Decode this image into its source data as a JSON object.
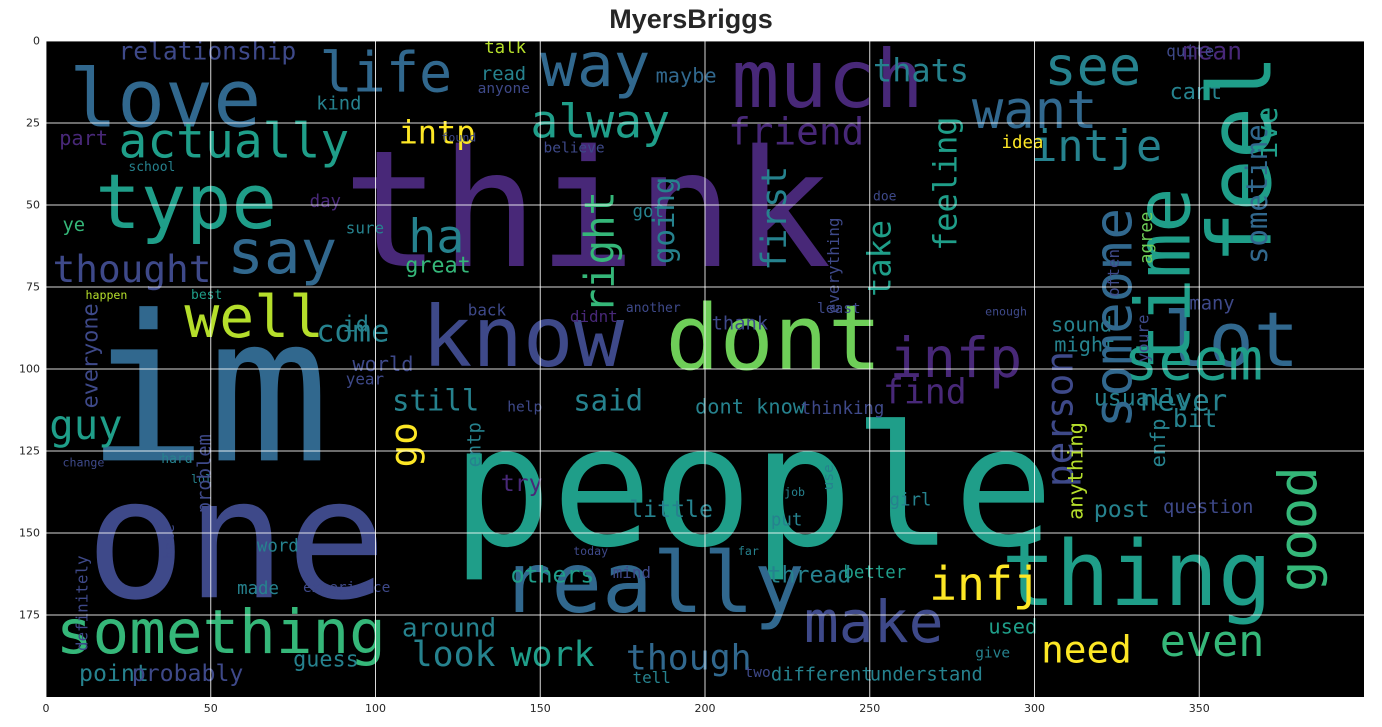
{
  "figure": {
    "title": "MyersBriggs",
    "x_ticks": [
      "0",
      "50",
      "100",
      "150",
      "200",
      "250",
      "300",
      "350"
    ],
    "y_ticks": [
      "0",
      "25",
      "50",
      "75",
      "100",
      "125",
      "150",
      "175"
    ],
    "x_range": [
      0,
      400
    ],
    "y_range": [
      0,
      200
    ],
    "grid": true,
    "background": "#000000"
  },
  "palette": {
    "purple": "#482878",
    "dark_blue": "#3e4989",
    "steel_blue": "#31688e",
    "teal_blue": "#26828e",
    "teal": "#1f9e89",
    "green": "#35b779",
    "lime": "#6ece58",
    "yellow": "#b5de2b",
    "gold": "#fde725"
  },
  "words": [
    {
      "text": "think",
      "x": 90,
      "y": 32,
      "size": 112,
      "color": "purple"
    },
    {
      "text": "people",
      "x": 123,
      "y": 116,
      "size": 115,
      "color": "teal"
    },
    {
      "text": "im",
      "x": 12,
      "y": 82,
      "size": 140,
      "color": "steel_blue"
    },
    {
      "text": "one",
      "x": 12,
      "y": 132,
      "size": 115,
      "color": "dark_blue"
    },
    {
      "text": "love",
      "x": 7,
      "y": 8,
      "size": 55,
      "color": "steel_blue"
    },
    {
      "text": "much",
      "x": 208,
      "y": 2,
      "size": 55,
      "color": "purple"
    },
    {
      "text": "way",
      "x": 150,
      "y": 0,
      "size": 42,
      "color": "steel_blue"
    },
    {
      "text": "life",
      "x": 83,
      "y": 3,
      "size": 38,
      "color": "steel_blue"
    },
    {
      "text": "type",
      "x": 15,
      "y": 40,
      "size": 52,
      "color": "teal"
    },
    {
      "text": "see",
      "x": 303,
      "y": 1,
      "size": 37,
      "color": "teal_blue"
    },
    {
      "text": "want",
      "x": 281,
      "y": 15,
      "size": 36,
      "color": "steel_blue"
    },
    {
      "text": "actually",
      "x": 22,
      "y": 25,
      "size": 33,
      "color": "teal"
    },
    {
      "text": "alway",
      "x": 147,
      "y": 19,
      "size": 32,
      "color": "teal"
    },
    {
      "text": "friend",
      "x": 207,
      "y": 23,
      "size": 26,
      "color": "purple"
    },
    {
      "text": "intp",
      "x": 107,
      "y": 24,
      "size": 22,
      "color": "gold"
    },
    {
      "text": "intje",
      "x": 299,
      "y": 27,
      "size": 30,
      "color": "teal_blue"
    },
    {
      "text": "thats",
      "x": 251,
      "y": 5,
      "size": 22,
      "color": "teal_blue"
    },
    {
      "text": "relationship",
      "x": 22,
      "y": 0,
      "size": 17,
      "color": "dark_blue"
    },
    {
      "text": "say",
      "x": 55,
      "y": 57,
      "size": 42,
      "color": "steel_blue"
    },
    {
      "text": "ha",
      "x": 110,
      "y": 54,
      "size": 32,
      "color": "teal_blue"
    },
    {
      "text": "thought",
      "x": 2,
      "y": 65,
      "size": 26,
      "color": "dark_blue"
    },
    {
      "text": "well",
      "x": 42,
      "y": 77,
      "size": 40,
      "color": "yellow"
    },
    {
      "text": "know",
      "x": 114,
      "y": 80,
      "size": 58,
      "color": "dark_blue"
    },
    {
      "text": "dont",
      "x": 188,
      "y": 80,
      "size": 62,
      "color": "lime"
    },
    {
      "text": "infp",
      "x": 256,
      "y": 90,
      "size": 38,
      "color": "purple"
    },
    {
      "text": "come",
      "x": 82,
      "y": 85,
      "size": 21,
      "color": "teal_blue"
    },
    {
      "text": "world",
      "x": 93,
      "y": 96,
      "size": 14,
      "color": "dark_blue"
    },
    {
      "text": "guy",
      "x": 1,
      "y": 112,
      "size": 28,
      "color": "teal"
    },
    {
      "text": "still",
      "x": 105,
      "y": 106,
      "size": 20,
      "color": "teal_blue"
    },
    {
      "text": "said",
      "x": 160,
      "y": 106,
      "size": 20,
      "color": "teal_blue"
    },
    {
      "text": "find",
      "x": 254,
      "y": 103,
      "size": 24,
      "color": "purple"
    },
    {
      "text": "lot",
      "x": 339,
      "y": 82,
      "size": 52,
      "color": "steel_blue"
    },
    {
      "text": "seem",
      "x": 327,
      "y": 90,
      "size": 40,
      "color": "teal"
    },
    {
      "text": "never",
      "x": 332,
      "y": 106,
      "size": 20,
      "color": "teal_blue"
    },
    {
      "text": "usually",
      "x": 318,
      "y": 106,
      "size": 16,
      "color": "teal_blue"
    },
    {
      "text": "dont know",
      "x": 197,
      "y": 109,
      "size": 14,
      "color": "teal_blue"
    },
    {
      "text": "thinking",
      "x": 229,
      "y": 110,
      "size": 12,
      "color": "dark_blue"
    },
    {
      "text": "bit",
      "x": 342,
      "y": 112,
      "size": 17,
      "color": "teal_blue"
    },
    {
      "text": "something",
      "x": 3,
      "y": 173,
      "size": 42,
      "color": "green"
    },
    {
      "text": "really",
      "x": 138,
      "y": 155,
      "size": 58,
      "color": "steel_blue"
    },
    {
      "text": "make",
      "x": 230,
      "y": 170,
      "size": 40,
      "color": "dark_blue"
    },
    {
      "text": "thing",
      "x": 290,
      "y": 152,
      "size": 62,
      "color": "teal"
    },
    {
      "text": "infj",
      "x": 268,
      "y": 160,
      "size": 32,
      "color": "gold"
    },
    {
      "text": "need",
      "x": 302,
      "y": 181,
      "size": 26,
      "color": "gold"
    },
    {
      "text": "even",
      "x": 338,
      "y": 178,
      "size": 30,
      "color": "green"
    },
    {
      "text": "look",
      "x": 111,
      "y": 183,
      "size": 24,
      "color": "teal_blue"
    },
    {
      "text": "work",
      "x": 141,
      "y": 183,
      "size": 24,
      "color": "teal"
    },
    {
      "text": "though",
      "x": 176,
      "y": 184,
      "size": 24,
      "color": "steel_blue"
    },
    {
      "text": "around",
      "x": 108,
      "y": 176,
      "size": 18,
      "color": "teal_blue"
    },
    {
      "text": "point",
      "x": 10,
      "y": 190,
      "size": 16,
      "color": "teal_blue"
    },
    {
      "text": "probably",
      "x": 26,
      "y": 190,
      "size": 16,
      "color": "dark_blue"
    },
    {
      "text": "guess",
      "x": 75,
      "y": 186,
      "size": 15,
      "color": "teal_blue"
    },
    {
      "text": "others",
      "x": 141,
      "y": 160,
      "size": 16,
      "color": "teal"
    },
    {
      "text": "little",
      "x": 177,
      "y": 140,
      "size": 16,
      "color": "teal_blue"
    },
    {
      "text": "thread",
      "x": 219,
      "y": 160,
      "size": 16,
      "color": "teal_blue"
    },
    {
      "text": "post",
      "x": 318,
      "y": 140,
      "size": 16,
      "color": "teal_blue"
    },
    {
      "text": "question",
      "x": 339,
      "y": 140,
      "size": 13,
      "color": "dark_blue"
    },
    {
      "text": "understand",
      "x": 250,
      "y": 191,
      "size": 13,
      "color": "teal_blue"
    },
    {
      "text": "different",
      "x": 220,
      "y": 191,
      "size": 13,
      "color": "teal_blue"
    },
    {
      "text": "used",
      "x": 286,
      "y": 176,
      "size": 14,
      "color": "teal"
    },
    {
      "text": "tell",
      "x": 178,
      "y": 192,
      "size": 11,
      "color": "teal_blue"
    },
    {
      "text": "talk",
      "x": 133,
      "y": 0,
      "size": 12,
      "color": "yellow"
    },
    {
      "text": "read",
      "x": 132,
      "y": 8,
      "size": 13,
      "color": "teal_blue"
    },
    {
      "text": "maybe",
      "x": 185,
      "y": 8,
      "size": 14,
      "color": "steel_blue"
    },
    {
      "text": "kind",
      "x": 82,
      "y": 17,
      "size": 13,
      "color": "teal_blue"
    },
    {
      "text": "part",
      "x": 4,
      "y": 27,
      "size": 14,
      "color": "purple"
    },
    {
      "text": "cant",
      "x": 341,
      "y": 13,
      "size": 15,
      "color": "teal_blue"
    },
    {
      "text": "idea",
      "x": 290,
      "y": 29,
      "size": 12,
      "color": "gold"
    },
    {
      "text": "day",
      "x": 80,
      "y": 47,
      "size": 12,
      "color": "purple"
    },
    {
      "text": "got",
      "x": 178,
      "y": 50,
      "size": 12,
      "color": "teal_blue"
    },
    {
      "text": "ye",
      "x": 5,
      "y": 54,
      "size": 13,
      "color": "green"
    },
    {
      "text": "sure",
      "x": 91,
      "y": 55,
      "size": 11,
      "color": "teal_blue"
    },
    {
      "text": "great",
      "x": 109,
      "y": 66,
      "size": 15,
      "color": "green"
    },
    {
      "text": "id",
      "x": 90,
      "y": 84,
      "size": 15,
      "color": "teal_blue"
    },
    {
      "text": "back",
      "x": 128,
      "y": 80,
      "size": 11,
      "color": "dark_blue"
    },
    {
      "text": "thank",
      "x": 202,
      "y": 84,
      "size": 13,
      "color": "dark_blue"
    },
    {
      "text": "sound",
      "x": 305,
      "y": 84,
      "size": 14,
      "color": "teal_blue"
    },
    {
      "text": "might",
      "x": 306,
      "y": 90,
      "size": 14,
      "color": "teal_blue"
    },
    {
      "text": "many",
      "x": 347,
      "y": 78,
      "size": 13,
      "color": "dark_blue"
    },
    {
      "text": "year",
      "x": 91,
      "y": 101,
      "size": 11,
      "color": "dark_blue"
    },
    {
      "text": "help",
      "x": 140,
      "y": 110,
      "size": 10,
      "color": "dark_blue"
    },
    {
      "text": "try",
      "x": 138,
      "y": 132,
      "size": 16,
      "color": "purple"
    },
    {
      "text": "girl",
      "x": 256,
      "y": 138,
      "size": 12,
      "color": "teal_blue"
    },
    {
      "text": "put",
      "x": 220,
      "y": 144,
      "size": 12,
      "color": "teal_blue"
    },
    {
      "text": "word",
      "x": 64,
      "y": 152,
      "size": 12,
      "color": "teal_blue"
    },
    {
      "text": "made",
      "x": 58,
      "y": 165,
      "size": 12,
      "color": "teal_blue"
    },
    {
      "text": "mind",
      "x": 172,
      "y": 160,
      "size": 11,
      "color": "dark_blue"
    },
    {
      "text": "experience",
      "x": 78,
      "y": 165,
      "size": 10,
      "color": "dark_blue"
    },
    {
      "text": "give",
      "x": 282,
      "y": 185,
      "size": 10,
      "color": "teal_blue"
    },
    {
      "text": "two",
      "x": 212,
      "y": 191,
      "size": 10,
      "color": "dark_blue"
    },
    {
      "text": "mean",
      "x": 345,
      "y": 0,
      "size": 17,
      "color": "purple"
    },
    {
      "text": "quite",
      "x": 340,
      "y": 1,
      "size": 11,
      "color": "dark_blue"
    },
    {
      "text": "anyone",
      "x": 131,
      "y": 13,
      "size": 10,
      "color": "dark_blue"
    },
    {
      "text": "believe",
      "x": 151,
      "y": 31,
      "size": 10,
      "color": "dark_blue"
    },
    {
      "text": "school",
      "x": 25,
      "y": 37,
      "size": 9,
      "color": "teal_blue"
    },
    {
      "text": "found",
      "x": 120,
      "y": 28,
      "size": 8,
      "color": "dark_blue"
    },
    {
      "text": "doe",
      "x": 251,
      "y": 46,
      "size": 9,
      "color": "dark_blue"
    },
    {
      "text": "another",
      "x": 176,
      "y": 80,
      "size": 9,
      "color": "dark_blue"
    },
    {
      "text": "least",
      "x": 234,
      "y": 80,
      "size": 10,
      "color": "dark_blue"
    },
    {
      "text": "didnt",
      "x": 159,
      "y": 82,
      "size": 11,
      "color": "purple"
    },
    {
      "text": "enough",
      "x": 285,
      "y": 81,
      "size": 8,
      "color": "dark_blue"
    },
    {
      "text": "better",
      "x": 242,
      "y": 160,
      "size": 12,
      "color": "teal"
    },
    {
      "text": "job",
      "x": 224,
      "y": 136,
      "size": 8,
      "color": "teal_blue"
    },
    {
      "text": "today",
      "x": 160,
      "y": 154,
      "size": 8,
      "color": "dark_blue"
    },
    {
      "text": "far",
      "x": 210,
      "y": 154,
      "size": 8,
      "color": "teal_blue"
    },
    {
      "text": "hard",
      "x": 35,
      "y": 126,
      "size": 9,
      "color": "teal_blue"
    },
    {
      "text": "change",
      "x": 5,
      "y": 127,
      "size": 8,
      "color": "dark_blue"
    },
    {
      "text": "lol",
      "x": 44,
      "y": 132,
      "size": 8,
      "color": "teal_blue"
    },
    {
      "text": "best",
      "x": 44,
      "y": 76,
      "size": 9,
      "color": "teal"
    },
    {
      "text": "happen",
      "x": 12,
      "y": 76,
      "size": 8,
      "color": "yellow"
    }
  ],
  "vertical_words": [
    {
      "text": "feel",
      "x": 352,
      "y": 68,
      "size": 60,
      "color": "teal"
    },
    {
      "text": "time",
      "x": 330,
      "y": 100,
      "size": 52,
      "color": "teal"
    },
    {
      "text": "someone",
      "x": 318,
      "y": 118,
      "size": 36,
      "color": "steel_blue"
    },
    {
      "text": "good",
      "x": 374,
      "y": 168,
      "size": 36,
      "color": "green"
    },
    {
      "text": "person",
      "x": 303,
      "y": 136,
      "size": 26,
      "color": "dark_blue"
    },
    {
      "text": "right",
      "x": 163,
      "y": 83,
      "size": 28,
      "color": "green"
    },
    {
      "text": "going",
      "x": 184,
      "y": 68,
      "size": 20,
      "color": "teal_blue"
    },
    {
      "text": "first",
      "x": 217,
      "y": 70,
      "size": 24,
      "color": "teal_blue"
    },
    {
      "text": "take",
      "x": 249,
      "y": 78,
      "size": 22,
      "color": "teal"
    },
    {
      "text": "feeling",
      "x": 269,
      "y": 64,
      "size": 22,
      "color": "teal"
    },
    {
      "text": "go",
      "x": 104,
      "y": 130,
      "size": 26,
      "color": "gold"
    },
    {
      "text": "sometime",
      "x": 364,
      "y": 68,
      "size": 20,
      "color": "steel_blue"
    },
    {
      "text": "ive",
      "x": 367,
      "y": 36,
      "size": 20,
      "color": "teal"
    },
    {
      "text": "everyone",
      "x": 11,
      "y": 112,
      "size": 15,
      "color": "dark_blue"
    },
    {
      "text": "problem",
      "x": 46,
      "y": 144,
      "size": 13,
      "color": "dark_blue"
    },
    {
      "text": "anything",
      "x": 310,
      "y": 146,
      "size": 14,
      "color": "yellow"
    },
    {
      "text": "enfp",
      "x": 335,
      "y": 130,
      "size": 14,
      "color": "teal_blue"
    },
    {
      "text": "entp",
      "x": 128,
      "y": 130,
      "size": 13,
      "color": "teal_blue"
    },
    {
      "text": "agree",
      "x": 332,
      "y": 68,
      "size": 12,
      "color": "lime"
    },
    {
      "text": "everything",
      "x": 237,
      "y": 83,
      "size": 11,
      "color": "dark_blue"
    },
    {
      "text": "often",
      "x": 322,
      "y": 78,
      "size": 11,
      "color": "dark_blue"
    },
    {
      "text": "youre",
      "x": 331,
      "y": 98,
      "size": 11,
      "color": "dark_blue"
    },
    {
      "text": "definitely",
      "x": 9,
      "y": 186,
      "size": 11,
      "color": "dark_blue"
    },
    {
      "text": "hate",
      "x": 36,
      "y": 158,
      "size": 10,
      "color": "dark_blue"
    },
    {
      "text": "use",
      "x": 236,
      "y": 137,
      "size": 10,
      "color": "teal_blue"
    }
  ]
}
